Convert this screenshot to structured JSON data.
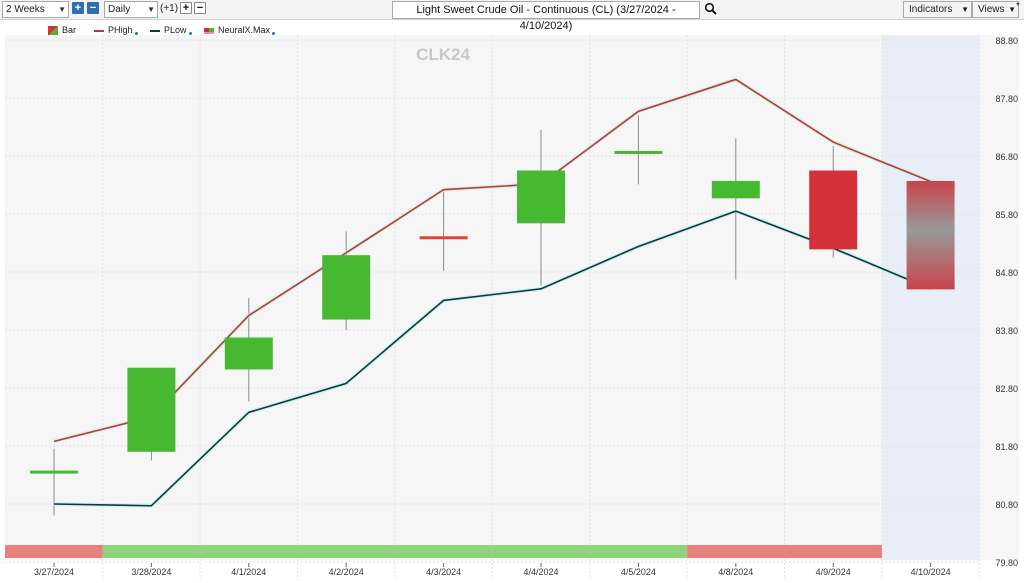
{
  "toolbar": {
    "period_select": "2 Weeks",
    "interval_select": "Daily",
    "offset_label": "(+1)",
    "title": "Light Sweet Crude Oil - Continuous (CL) (3/27/2024 - 4/10/2024)",
    "indicators_label": "Indicators",
    "views_label": "Views",
    "views_marker": "*"
  },
  "legend": [
    {
      "label": "Bar",
      "color": "#d33"
    },
    {
      "label": "PHigh",
      "color": "#c0392b"
    },
    {
      "label": "PLow",
      "color": "#0c3b38"
    },
    {
      "label": "NeuralX.Max",
      "color": "#d33"
    }
  ],
  "watermark": "CLK24",
  "chart_data": {
    "type": "candlestick",
    "categories": [
      "3/27/2024",
      "3/28/2024",
      "4/1/2024",
      "4/2/2024",
      "4/3/2024",
      "4/4/2024",
      "4/5/2024",
      "4/8/2024",
      "4/9/2024",
      "4/10/2024"
    ],
    "ohlc": [
      {
        "open": 81.35,
        "high": 81.75,
        "low": 80.6,
        "close": 81.35,
        "color": "#46b832"
      },
      {
        "open": 81.7,
        "high": 83.15,
        "low": 81.55,
        "close": 83.15,
        "color": "#46b832"
      },
      {
        "open": 83.12,
        "high": 84.35,
        "low": 82.57,
        "close": 83.67,
        "color": "#46b832"
      },
      {
        "open": 83.98,
        "high": 85.5,
        "low": 83.8,
        "close": 85.09,
        "color": "#46b832"
      },
      {
        "open": 85.39,
        "high": 86.2,
        "low": 84.82,
        "close": 85.39,
        "color": "#d9443a"
      },
      {
        "open": 85.64,
        "high": 87.25,
        "low": 84.57,
        "close": 86.55,
        "color": "#46b832"
      },
      {
        "open": 86.86,
        "high": 87.5,
        "low": 86.31,
        "close": 86.86,
        "color": "#46b832"
      },
      {
        "open": 86.07,
        "high": 87.1,
        "low": 84.67,
        "close": 86.37,
        "color": "#46b832"
      },
      {
        "open": 86.55,
        "high": 86.97,
        "low": 85.05,
        "close": 85.19,
        "color": "#d33038"
      },
      {
        "open": 86.37,
        "high": 86.37,
        "low": 84.5,
        "close": 84.5,
        "color": "gradient"
      }
    ],
    "series": [
      {
        "name": "PHigh",
        "color": "#c0392b",
        "values": [
          81.88,
          82.3,
          84.05,
          85.13,
          86.22,
          86.32,
          87.57,
          88.12,
          87.04,
          86.36
        ]
      },
      {
        "name": "PLow",
        "color": "#0c3b38",
        "values": [
          80.8,
          80.77,
          82.38,
          82.88,
          84.31,
          84.51,
          85.24,
          85.85,
          85.21,
          84.51
        ]
      }
    ],
    "signal_bar": [
      "red",
      "green",
      "green",
      "green",
      "green",
      "green",
      "green",
      "red",
      "red",
      "none"
    ],
    "forecast_start_index": 9,
    "y_ticks": [
      79.8,
      80.8,
      81.8,
      82.8,
      83.8,
      84.8,
      85.8,
      86.8,
      87.8,
      88.8
    ],
    "ylim": [
      79.8,
      88.8
    ],
    "grid": true,
    "colors": {
      "up": "#46b832",
      "down": "#d33038",
      "phigh": "#c0392b",
      "plow": "#0c3b38",
      "signal_green": "#8fd47a",
      "signal_red": "#e88080",
      "forecast_bg": "#e8eef7"
    }
  }
}
